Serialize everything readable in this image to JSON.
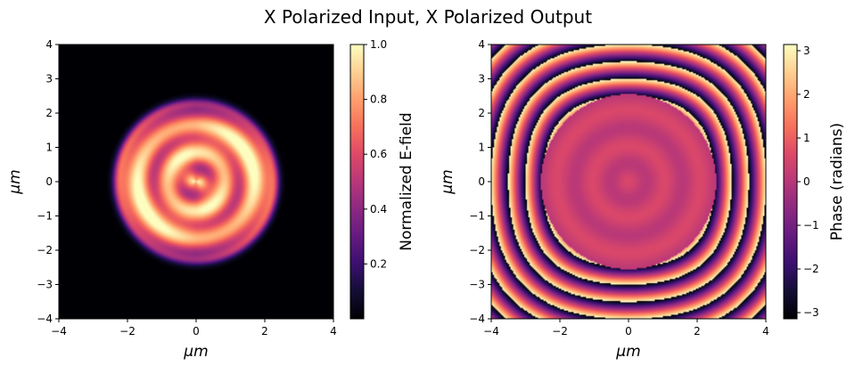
{
  "figure": {
    "title": "X Polarized Input, X Polarized Output"
  },
  "chart_data": [
    {
      "type": "heatmap",
      "panel": "left",
      "xlabel": "μm",
      "ylabel": "μm",
      "xlim": [
        -4,
        4
      ],
      "ylim": [
        -4,
        4
      ],
      "xticks": [
        -4,
        -2,
        0,
        2,
        4
      ],
      "yticks": [
        -4,
        -3,
        -2,
        -1,
        0,
        1,
        2,
        3,
        4
      ],
      "colormap": "magma",
      "colorbar": {
        "label": "Normalized E-field",
        "range": [
          0,
          1
        ],
        "ticks": [
          0.2,
          0.4,
          0.6,
          0.8,
          1.0
        ],
        "tick_labels": [
          "0.2",
          "0.4",
          "0.6",
          "0.8",
          "1.0"
        ]
      },
      "description_values": {
        "disk_radius_um": 2.35,
        "background_value": 0.0,
        "disk_peak_value": 0.95,
        "disk_typical_value": 0.7
      }
    },
    {
      "type": "heatmap",
      "panel": "right",
      "xlabel": "μm",
      "ylabel": "μm",
      "xlim": [
        -4,
        4
      ],
      "ylim": [
        -4,
        4
      ],
      "xticks": [
        -4,
        -2,
        0,
        2,
        4
      ],
      "yticks": [
        -4,
        -3,
        -2,
        -1,
        0,
        1,
        2,
        3,
        4
      ],
      "colormap": "magma",
      "colorbar": {
        "label": "Phase (radians)",
        "range": [
          -3.14159,
          3.14159
        ],
        "ticks": [
          -3,
          -2,
          -1,
          0,
          1,
          2,
          3
        ],
        "tick_labels": [
          "−3",
          "−2",
          "−1",
          "0",
          "1",
          "2",
          "3"
        ]
      },
      "description_values": {
        "inner_disk_radius_um": 2.55,
        "inner_phase_rad": 0.3,
        "wrapped_ring_radii_um": [
          2.85,
          3.35,
          3.85
        ]
      }
    }
  ]
}
